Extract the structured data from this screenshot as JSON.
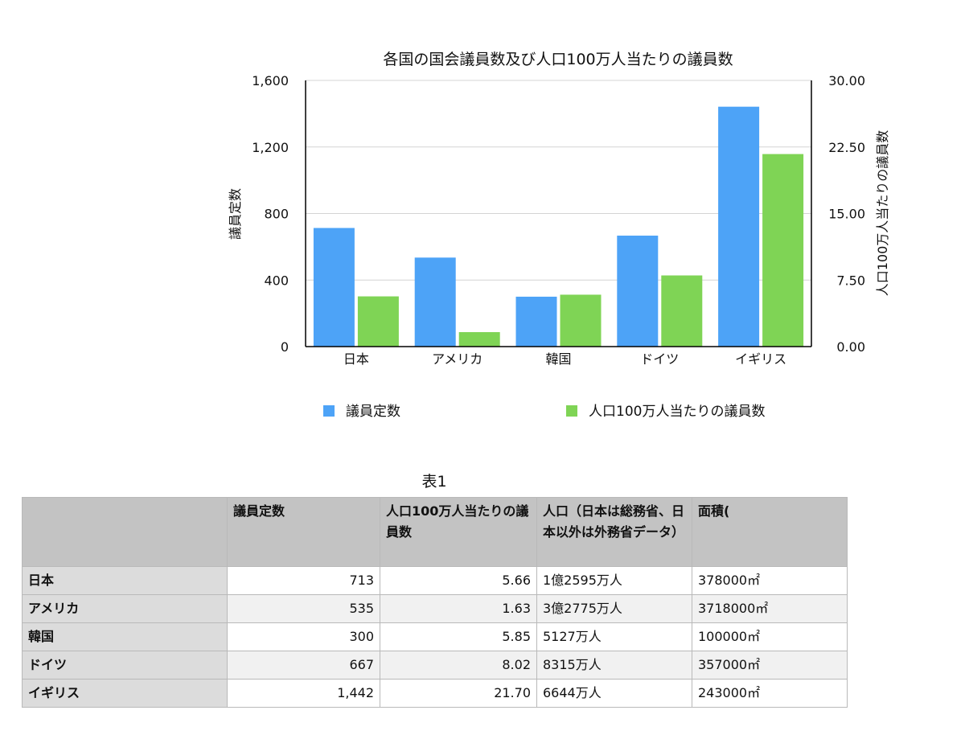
{
  "chart_data": {
    "type": "bar",
    "title": "各国の国会議員数及び人口100万人当たりの議員数",
    "categories": [
      "日本",
      "アメリカ",
      "韓国",
      "ドイツ",
      "イギリス"
    ],
    "series": [
      {
        "name": "議員定数",
        "axis": "left",
        "color": "#4da3f7",
        "values": [
          713,
          535,
          300,
          667,
          1442
        ]
      },
      {
        "name": "人口100万人当たりの議員数",
        "axis": "right",
        "color": "#7fd455",
        "values": [
          5.66,
          1.63,
          5.85,
          8.02,
          21.7
        ]
      }
    ],
    "y_left": {
      "label": "議員定数",
      "min": 0,
      "max": 1600,
      "ticks": [
        "0",
        "400",
        "800",
        "1,200",
        "1,600"
      ]
    },
    "y_right": {
      "label": "人口100万人当たりの議員数",
      "min": 0,
      "max": 30,
      "ticks": [
        "0.00",
        "7.50",
        "15.00",
        "22.50",
        "30.00"
      ]
    },
    "grid": true,
    "legend_position": "bottom"
  },
  "table": {
    "caption": "表1",
    "headers": [
      "",
      "議員定数",
      "人口100万人当たりの議員数",
      "人口（日本は総務省、日本以外は外務省データ）",
      "面積("
    ],
    "rows": [
      [
        "日本",
        "713",
        "5.66",
        "1億2595万人",
        "378000㎡"
      ],
      [
        "アメリカ",
        "535",
        "1.63",
        "3億2775万人",
        "3718000㎡"
      ],
      [
        "韓国",
        "300",
        "5.85",
        "5127万人",
        "100000㎡"
      ],
      [
        "ドイツ",
        "667",
        "8.02",
        "8315万人",
        "357000㎡"
      ],
      [
        "イギリス",
        "1,442",
        "21.70",
        "6644万人",
        "243000㎡"
      ]
    ]
  }
}
